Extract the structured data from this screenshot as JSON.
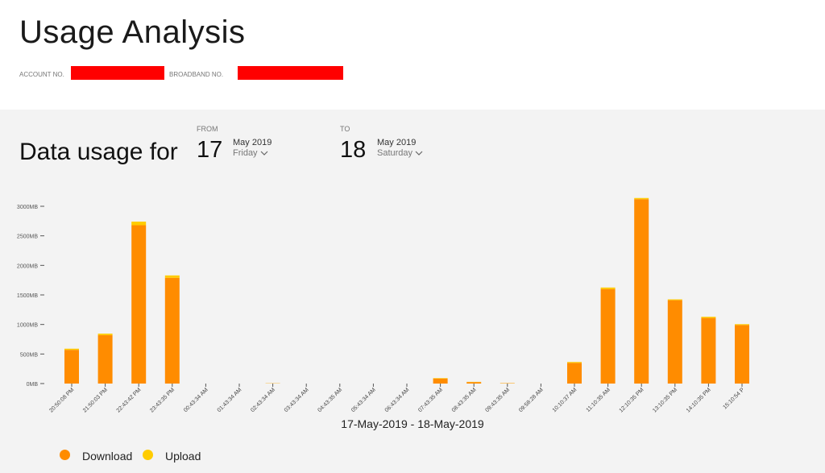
{
  "header": {
    "title": "Usage Analysis",
    "account_label": "ACCOUNT NO.",
    "broadband_label": "BROADBAND NO."
  },
  "colors": {
    "download": "#ff8c00",
    "upload": "#ffcc00",
    "redaction": "#ff0000",
    "panel": "#f3f3f3"
  },
  "usage": {
    "heading": "Data usage for",
    "from": {
      "label": "FROM",
      "day": "17",
      "month": "May 2019",
      "weekday": "Friday"
    },
    "to": {
      "label": "TO",
      "day": "18",
      "month": "May 2019",
      "weekday": "Saturday"
    }
  },
  "chart_data": {
    "type": "bar",
    "stacked": true,
    "categories": [
      "20:50:08 PM",
      "21:50:03 PM",
      "22:43:42 PM",
      "23:43:35 PM",
      "00:43:34 AM",
      "01:43:34 AM",
      "02:43:34 AM",
      "03:43:34 AM",
      "04:43:35 AM",
      "05:43:34 AM",
      "06:43:34 AM",
      "07:43:35 AM",
      "08:43:35 AM",
      "09:43:35 AM",
      "09:58:28 AM",
      "10:10:37 AM",
      "11:10:35 AM",
      "12:10:35 PM",
      "13:10:35 PM",
      "14:10:35 PM",
      "15:10:54 P"
    ],
    "series": [
      {
        "name": "Download",
        "values": [
          570,
          820,
          2680,
          1790,
          0,
          0,
          4,
          0,
          0,
          0,
          0,
          85,
          25,
          6,
          0,
          350,
          1600,
          3120,
          1410,
          1110,
          990
        ]
      },
      {
        "name": "Upload",
        "values": [
          20,
          25,
          60,
          40,
          0,
          0,
          2,
          0,
          0,
          0,
          0,
          8,
          4,
          2,
          0,
          15,
          25,
          20,
          15,
          20,
          15
        ]
      }
    ],
    "y_ticks": [
      "0MB",
      "500MB",
      "1000MB",
      "1500MB",
      "2000MB",
      "2500MB",
      "3000MB"
    ],
    "ylim": [
      0,
      3000
    ],
    "xlabel": "17-May-2019 - 18-May-2019",
    "legend": "bottom-left",
    "grid": false
  }
}
